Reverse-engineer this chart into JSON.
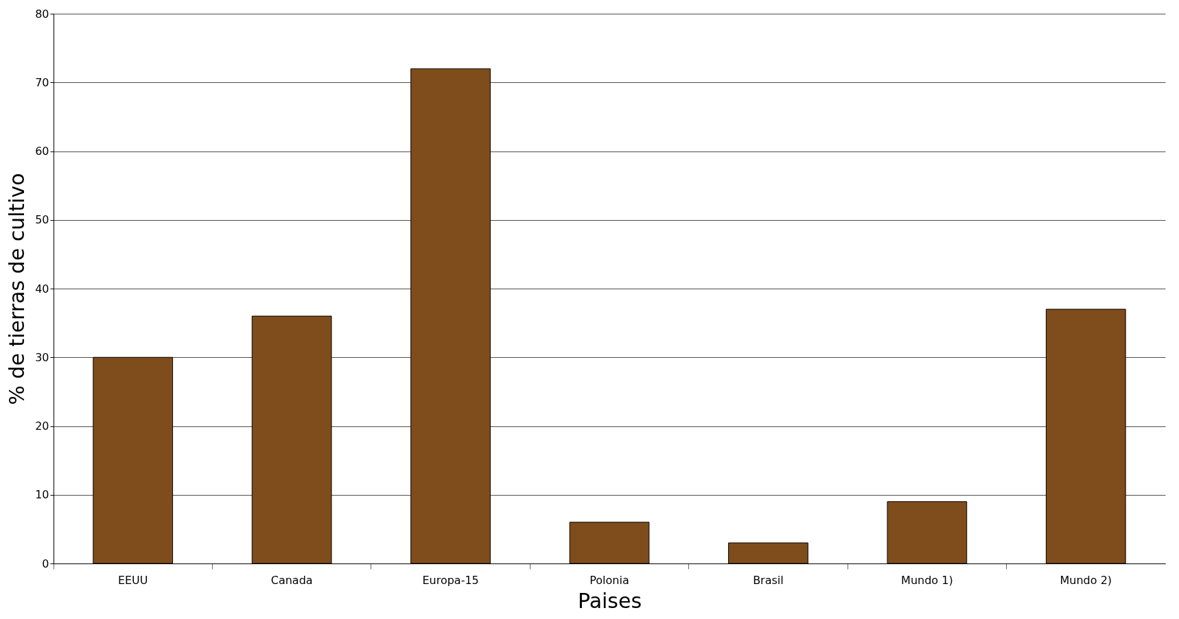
{
  "chart_data": {
    "type": "bar",
    "xlabel": "Paises",
    "ylabel": "% de tierras de cultivo",
    "categories": [
      "EEUU",
      "Canada",
      "Europa-15",
      "Polonia",
      "Brasil",
      "Mundo 1)",
      "Mundo 2)"
    ],
    "values": [
      30,
      36,
      72,
      6,
      3,
      9,
      37
    ],
    "color": "#7f4c1b",
    "ylim": [
      0,
      80
    ],
    "yticks": [
      0,
      10,
      20,
      30,
      40,
      50,
      60,
      70,
      80
    ],
    "grid": "y"
  }
}
